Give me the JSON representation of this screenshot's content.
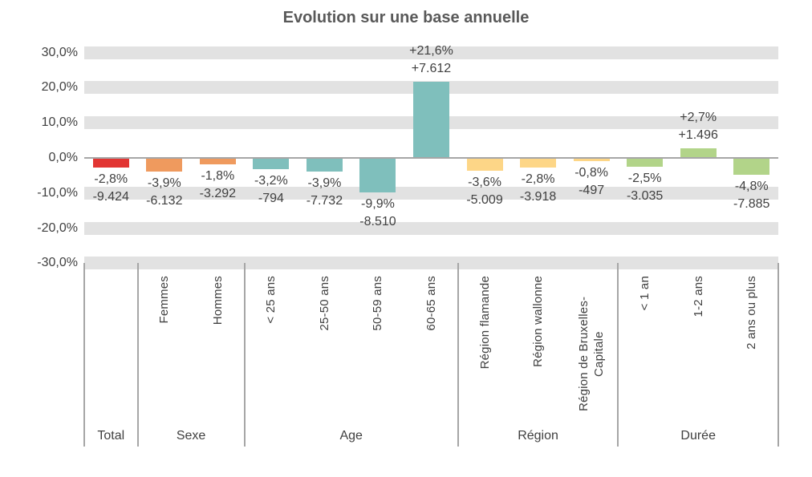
{
  "chart_data": {
    "type": "bar",
    "title": "Evolution sur une base annuelle",
    "ylabel": "",
    "xlabel": "",
    "ylim": [
      -30,
      30
    ],
    "grid": "horizontal-bands",
    "legend": "none",
    "value_format": "percent with absolute count label",
    "yticks": [
      {
        "value": 30,
        "label": "30,0%"
      },
      {
        "value": 20,
        "label": "20,0%"
      },
      {
        "value": 10,
        "label": "10,0%"
      },
      {
        "value": 0,
        "label": "0,0%"
      },
      {
        "value": -10,
        "label": "-10,0%"
      },
      {
        "value": -20,
        "label": "-20,0%"
      },
      {
        "value": -30,
        "label": "-30,0%"
      }
    ],
    "groups": [
      {
        "label": "Total",
        "color": "#e23533",
        "bars": [
          {
            "category": "",
            "pct": -2.8,
            "pct_label": "-2,8%",
            "abs_label": "-9.424"
          }
        ]
      },
      {
        "label": "Sexe",
        "color": "#ef9a5e",
        "bars": [
          {
            "category": "Femmes",
            "pct": -3.9,
            "pct_label": "-3,9%",
            "abs_label": "-6.132"
          },
          {
            "category": "Hommes",
            "pct": -1.8,
            "pct_label": "-1,8%",
            "abs_label": "-3.292"
          }
        ]
      },
      {
        "label": "Age",
        "color": "#7fbfbc",
        "bars": [
          {
            "category": "< 25 ans",
            "pct": -3.2,
            "pct_label": "-3,2%",
            "abs_label": "-794"
          },
          {
            "category": "25-50 ans",
            "pct": -3.9,
            "pct_label": "-3,9%",
            "abs_label": "-7.732"
          },
          {
            "category": "50-59 ans",
            "pct": -9.9,
            "pct_label": "-9,9%",
            "abs_label": "-8.510"
          },
          {
            "category": "60-65 ans",
            "pct": 21.6,
            "pct_label": "+21,6%",
            "abs_label": "+7.612"
          }
        ]
      },
      {
        "label": "Région",
        "color": "#fdd687",
        "bars": [
          {
            "category": "Région flamande",
            "pct": -3.6,
            "pct_label": "-3,6%",
            "abs_label": "-5.009"
          },
          {
            "category": "Région wallonne",
            "pct": -2.8,
            "pct_label": "-2,8%",
            "abs_label": "-3.918"
          },
          {
            "category": "Région de Bruxelles-Capitale",
            "pct": -0.8,
            "pct_label": "-0,8%",
            "abs_label": "-497"
          }
        ]
      },
      {
        "label": "Durée",
        "color": "#b2d489",
        "bars": [
          {
            "category": "< 1 an",
            "pct": -2.5,
            "pct_label": "-2,5%",
            "abs_label": "-3.035"
          },
          {
            "category": "1-2 ans",
            "pct": 2.7,
            "pct_label": "+2,7%",
            "abs_label": "+1.496"
          },
          {
            "category": "2 ans ou plus",
            "pct": -4.8,
            "pct_label": "-4,8%",
            "abs_label": "-7.885"
          }
        ]
      }
    ],
    "colors": {
      "gridline_band": "#e2e2e2",
      "axis_line": "#a6a6a6",
      "separator_line": "#a6a6a6",
      "tick_text": "#404040",
      "label_text": "#404040",
      "title_text": "#595959"
    }
  }
}
